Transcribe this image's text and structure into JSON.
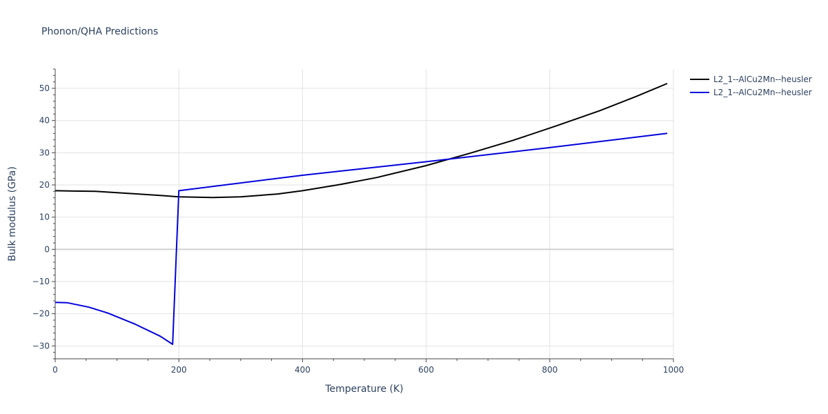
{
  "chart_data": {
    "type": "line",
    "title": "Phonon/QHA Predictions",
    "xlabel": "Temperature (K)",
    "ylabel": "Bulk modulus (GPa)",
    "xlim": [
      0,
      1000
    ],
    "ylim": [
      -34,
      56
    ],
    "xticks": [
      0,
      200,
      400,
      600,
      800,
      1000
    ],
    "yticks": [
      -30,
      -20,
      -10,
      0,
      10,
      20,
      30,
      40,
      50
    ],
    "grid": true,
    "legend_position": "top-right",
    "series": [
      {
        "name": "L2_1--AlCu2Mn--heusler",
        "color": "#000000",
        "x": [
          0,
          30,
          65,
          100,
          140,
          180,
          200,
          255,
          300,
          360,
          400,
          460,
          520,
          600,
          670,
          740,
          810,
          880,
          940,
          990
        ],
        "y": [
          18.2,
          18.1,
          18.0,
          17.6,
          17.1,
          16.6,
          16.3,
          16.1,
          16.3,
          17.2,
          18.2,
          20.1,
          22.3,
          26.0,
          29.8,
          33.8,
          38.3,
          43.0,
          47.5,
          51.5
        ]
      },
      {
        "name": "L2_1--AlCu2Mn--heusler",
        "color": "#0000dd",
        "x": [
          0,
          20,
          55,
          85,
          130,
          170,
          190,
          200,
          400,
          600,
          800,
          990
        ],
        "y": [
          -16.5,
          -16.6,
          -18.0,
          -19.8,
          -23.3,
          -27.0,
          -29.5,
          18.2,
          23.0,
          27.2,
          31.6,
          36.0
        ]
      }
    ]
  }
}
